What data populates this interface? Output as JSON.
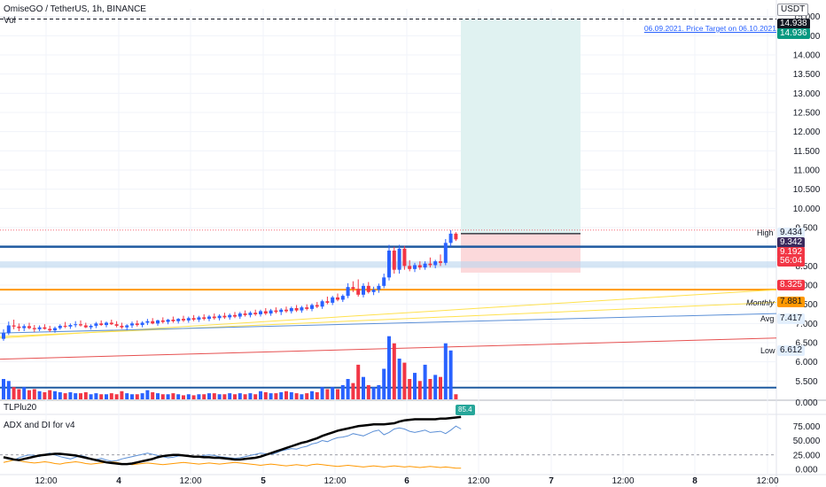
{
  "header": {
    "symbol_line": "OmiseGO / TetherUS, 1h, BINANCE",
    "vol_label": "Vol",
    "currency": "USDT"
  },
  "annotation": {
    "target_text": "06.09.2021. Price Target on 06.10.2021"
  },
  "price_tags": {
    "target_top": "14.938",
    "target_second": "14.936",
    "high_label": "High",
    "high_value": "9.434",
    "entry_value": "9.342",
    "current_value": "9.192",
    "countdown": "56:04",
    "stop_value": "8.325",
    "monthly_label": "Monthly",
    "monthly_value": "7.881",
    "avg_label": "Avg",
    "avg_value": "7.417",
    "low_label": "Low",
    "low_value": "6.612",
    "vol_value": "0.000",
    "zero_value": "0.000"
  },
  "indicators": {
    "tlp_label": "TLPlu20",
    "tlp_badge": "85.4",
    "adx_label": "ADX and DI for v4"
  },
  "colors": {
    "up": "#2962ff",
    "down": "#f23645",
    "accent_green": "#089981",
    "orange": "#ff9800",
    "target_zone": "#e0f2f1",
    "stop_zone": "#fcd9db"
  },
  "chart_data": {
    "type": "candlestick",
    "title": "",
    "price_axis": {
      "ticks": [
        "15.000",
        "14.500",
        "14.000",
        "13.500",
        "13.000",
        "12.500",
        "12.000",
        "11.500",
        "11.000",
        "10.500",
        "10.000",
        "9.500",
        "8.500",
        "8.000",
        "7.500",
        "7.000",
        "6.500",
        "6.000",
        "5.500"
      ],
      "ylim": [
        5.0,
        15.2
      ]
    },
    "time_axis": {
      "ticks": [
        "12:00",
        "4",
        "12:00",
        "5",
        "12:00",
        "6",
        "12:00",
        "7",
        "12:00",
        "8",
        "12:00"
      ]
    },
    "lines": {
      "target_price": 14.936,
      "high": 9.434,
      "entry": 9.342,
      "current": 9.192,
      "stop": 8.325,
      "monthly": 7.881,
      "avg": 7.417,
      "low": 6.612
    },
    "candles": [
      {
        "o": 6.6,
        "h": 6.85,
        "l": 6.55,
        "c": 6.75,
        "v": 0.2
      },
      {
        "o": 6.75,
        "h": 7.05,
        "l": 6.7,
        "c": 6.95,
        "v": 0.18
      },
      {
        "o": 6.95,
        "h": 7.1,
        "l": 6.85,
        "c": 6.92,
        "v": 0.12
      },
      {
        "o": 6.92,
        "h": 7.0,
        "l": 6.8,
        "c": 6.88,
        "v": 0.1
      },
      {
        "o": 6.88,
        "h": 6.98,
        "l": 6.8,
        "c": 6.93,
        "v": 0.12
      },
      {
        "o": 6.93,
        "h": 7.02,
        "l": 6.85,
        "c": 6.88,
        "v": 0.09
      },
      {
        "o": 6.88,
        "h": 6.96,
        "l": 6.78,
        "c": 6.85,
        "v": 0.1
      },
      {
        "o": 6.85,
        "h": 6.95,
        "l": 6.8,
        "c": 6.9,
        "v": 0.08
      },
      {
        "o": 6.9,
        "h": 6.98,
        "l": 6.84,
        "c": 6.86,
        "v": 0.07
      },
      {
        "o": 6.86,
        "h": 6.94,
        "l": 6.78,
        "c": 6.82,
        "v": 0.09
      },
      {
        "o": 6.82,
        "h": 6.92,
        "l": 6.76,
        "c": 6.88,
        "v": 0.08
      },
      {
        "o": 6.88,
        "h": 6.98,
        "l": 6.84,
        "c": 6.94,
        "v": 0.07
      },
      {
        "o": 6.94,
        "h": 7.04,
        "l": 6.88,
        "c": 6.92,
        "v": 0.06
      },
      {
        "o": 6.92,
        "h": 7.0,
        "l": 6.86,
        "c": 6.96,
        "v": 0.07
      },
      {
        "o": 6.96,
        "h": 7.06,
        "l": 6.9,
        "c": 6.98,
        "v": 0.06
      },
      {
        "o": 6.98,
        "h": 7.08,
        "l": 6.92,
        "c": 6.95,
        "v": 0.06
      },
      {
        "o": 6.95,
        "h": 7.02,
        "l": 6.88,
        "c": 6.9,
        "v": 0.07
      },
      {
        "o": 6.9,
        "h": 6.98,
        "l": 6.84,
        "c": 6.94,
        "v": 0.05
      },
      {
        "o": 6.94,
        "h": 7.04,
        "l": 6.88,
        "c": 7.0,
        "v": 0.06
      },
      {
        "o": 7.0,
        "h": 7.08,
        "l": 6.94,
        "c": 6.96,
        "v": 0.05
      },
      {
        "o": 6.96,
        "h": 7.05,
        "l": 6.9,
        "c": 7.02,
        "v": 0.05
      },
      {
        "o": 7.02,
        "h": 7.1,
        "l": 6.96,
        "c": 6.98,
        "v": 0.06
      },
      {
        "o": 6.98,
        "h": 7.06,
        "l": 6.9,
        "c": 6.94,
        "v": 0.05
      },
      {
        "o": 6.94,
        "h": 7.02,
        "l": 6.86,
        "c": 6.9,
        "v": 0.08
      },
      {
        "o": 6.9,
        "h": 6.98,
        "l": 6.82,
        "c": 6.95,
        "v": 0.06
      },
      {
        "o": 6.95,
        "h": 7.05,
        "l": 6.88,
        "c": 7.0,
        "v": 0.05
      },
      {
        "o": 7.0,
        "h": 7.08,
        "l": 6.92,
        "c": 6.96,
        "v": 0.05
      },
      {
        "o": 6.96,
        "h": 7.06,
        "l": 6.9,
        "c": 7.02,
        "v": 0.06
      },
      {
        "o": 7.02,
        "h": 7.12,
        "l": 6.96,
        "c": 7.06,
        "v": 0.09
      },
      {
        "o": 7.06,
        "h": 7.14,
        "l": 6.98,
        "c": 7.0,
        "v": 0.07
      },
      {
        "o": 7.0,
        "h": 7.1,
        "l": 6.94,
        "c": 7.08,
        "v": 0.06
      },
      {
        "o": 7.08,
        "h": 7.16,
        "l": 7.0,
        "c": 7.04,
        "v": 0.05
      },
      {
        "o": 7.04,
        "h": 7.12,
        "l": 6.98,
        "c": 7.1,
        "v": 0.05
      },
      {
        "o": 7.1,
        "h": 7.18,
        "l": 7.02,
        "c": 7.06,
        "v": 0.06
      },
      {
        "o": 7.06,
        "h": 7.14,
        "l": 7.0,
        "c": 7.12,
        "v": 0.05
      },
      {
        "o": 7.12,
        "h": 7.2,
        "l": 7.04,
        "c": 7.08,
        "v": 0.04
      },
      {
        "o": 7.08,
        "h": 7.18,
        "l": 7.02,
        "c": 7.14,
        "v": 0.05
      },
      {
        "o": 7.14,
        "h": 7.22,
        "l": 7.06,
        "c": 7.1,
        "v": 0.04
      },
      {
        "o": 7.1,
        "h": 7.2,
        "l": 7.04,
        "c": 7.16,
        "v": 0.05
      },
      {
        "o": 7.16,
        "h": 7.24,
        "l": 7.08,
        "c": 7.12,
        "v": 0.05
      },
      {
        "o": 7.12,
        "h": 7.22,
        "l": 7.06,
        "c": 7.18,
        "v": 0.06
      },
      {
        "o": 7.18,
        "h": 7.26,
        "l": 7.1,
        "c": 7.14,
        "v": 0.06
      },
      {
        "o": 7.14,
        "h": 7.24,
        "l": 7.08,
        "c": 7.2,
        "v": 0.05
      },
      {
        "o": 7.2,
        "h": 7.28,
        "l": 7.12,
        "c": 7.16,
        "v": 0.05
      },
      {
        "o": 7.16,
        "h": 7.26,
        "l": 7.1,
        "c": 7.22,
        "v": 0.06
      },
      {
        "o": 7.22,
        "h": 7.3,
        "l": 7.14,
        "c": 7.18,
        "v": 0.05
      },
      {
        "o": 7.18,
        "h": 7.3,
        "l": 7.12,
        "c": 7.26,
        "v": 0.06
      },
      {
        "o": 7.26,
        "h": 7.34,
        "l": 7.18,
        "c": 7.22,
        "v": 0.05
      },
      {
        "o": 7.22,
        "h": 7.32,
        "l": 7.16,
        "c": 7.28,
        "v": 0.06
      },
      {
        "o": 7.28,
        "h": 7.36,
        "l": 7.2,
        "c": 7.24,
        "v": 0.05
      },
      {
        "o": 7.24,
        "h": 7.36,
        "l": 7.18,
        "c": 7.32,
        "v": 0.08
      },
      {
        "o": 7.32,
        "h": 7.4,
        "l": 7.22,
        "c": 7.26,
        "v": 0.07
      },
      {
        "o": 7.26,
        "h": 7.38,
        "l": 7.2,
        "c": 7.34,
        "v": 0.06
      },
      {
        "o": 7.34,
        "h": 7.42,
        "l": 7.26,
        "c": 7.3,
        "v": 0.06
      },
      {
        "o": 7.3,
        "h": 7.4,
        "l": 7.22,
        "c": 7.36,
        "v": 0.07
      },
      {
        "o": 7.36,
        "h": 7.44,
        "l": 7.28,
        "c": 7.32,
        "v": 0.08
      },
      {
        "o": 7.32,
        "h": 7.44,
        "l": 7.26,
        "c": 7.4,
        "v": 0.07
      },
      {
        "o": 7.4,
        "h": 7.48,
        "l": 7.3,
        "c": 7.34,
        "v": 0.06
      },
      {
        "o": 7.34,
        "h": 7.46,
        "l": 7.28,
        "c": 7.42,
        "v": 0.05
      },
      {
        "o": 7.42,
        "h": 7.5,
        "l": 7.34,
        "c": 7.38,
        "v": 0.06
      },
      {
        "o": 7.38,
        "h": 7.52,
        "l": 7.32,
        "c": 7.48,
        "v": 0.08
      },
      {
        "o": 7.48,
        "h": 7.56,
        "l": 7.4,
        "c": 7.44,
        "v": 0.07
      },
      {
        "o": 7.44,
        "h": 7.62,
        "l": 7.38,
        "c": 7.58,
        "v": 0.12
      },
      {
        "o": 7.58,
        "h": 7.7,
        "l": 7.5,
        "c": 7.54,
        "v": 0.1
      },
      {
        "o": 7.54,
        "h": 7.72,
        "l": 7.48,
        "c": 7.68,
        "v": 0.12
      },
      {
        "o": 7.68,
        "h": 7.78,
        "l": 7.58,
        "c": 7.62,
        "v": 0.1
      },
      {
        "o": 7.62,
        "h": 7.76,
        "l": 7.56,
        "c": 7.72,
        "v": 0.14
      },
      {
        "o": 7.72,
        "h": 8.05,
        "l": 7.66,
        "c": 7.95,
        "v": 0.2
      },
      {
        "o": 7.95,
        "h": 8.1,
        "l": 7.82,
        "c": 7.9,
        "v": 0.16
      },
      {
        "o": 7.9,
        "h": 8.15,
        "l": 7.7,
        "c": 7.75,
        "v": 0.34
      },
      {
        "o": 7.75,
        "h": 8.05,
        "l": 7.68,
        "c": 7.98,
        "v": 0.22
      },
      {
        "o": 7.98,
        "h": 8.08,
        "l": 7.78,
        "c": 7.82,
        "v": 0.14
      },
      {
        "o": 7.82,
        "h": 7.96,
        "l": 7.74,
        "c": 7.88,
        "v": 0.12
      },
      {
        "o": 7.88,
        "h": 8.04,
        "l": 7.8,
        "c": 7.98,
        "v": 0.14
      },
      {
        "o": 7.98,
        "h": 8.3,
        "l": 7.92,
        "c": 8.2,
        "v": 0.3
      },
      {
        "o": 8.2,
        "h": 9.05,
        "l": 8.12,
        "c": 8.9,
        "v": 0.62
      },
      {
        "o": 8.9,
        "h": 9.0,
        "l": 8.3,
        "c": 8.4,
        "v": 0.55
      },
      {
        "o": 8.4,
        "h": 9.05,
        "l": 8.3,
        "c": 8.95,
        "v": 0.4
      },
      {
        "o": 8.95,
        "h": 9.02,
        "l": 8.4,
        "c": 8.5,
        "v": 0.36
      },
      {
        "o": 8.5,
        "h": 8.65,
        "l": 8.36,
        "c": 8.42,
        "v": 0.2
      },
      {
        "o": 8.42,
        "h": 8.58,
        "l": 8.34,
        "c": 8.52,
        "v": 0.26
      },
      {
        "o": 8.52,
        "h": 8.62,
        "l": 8.4,
        "c": 8.46,
        "v": 0.18
      },
      {
        "o": 8.46,
        "h": 8.62,
        "l": 8.4,
        "c": 8.56,
        "v": 0.34
      },
      {
        "o": 8.56,
        "h": 8.72,
        "l": 8.46,
        "c": 8.52,
        "v": 0.2
      },
      {
        "o": 8.52,
        "h": 8.66,
        "l": 8.44,
        "c": 8.62,
        "v": 0.24
      },
      {
        "o": 8.62,
        "h": 8.8,
        "l": 8.5,
        "c": 8.58,
        "v": 0.22
      },
      {
        "o": 8.58,
        "h": 9.2,
        "l": 8.52,
        "c": 9.1,
        "v": 0.55
      },
      {
        "o": 9.1,
        "h": 9.434,
        "l": 9.0,
        "c": 9.342,
        "v": 0.48
      },
      {
        "o": 9.342,
        "h": 9.38,
        "l": 9.15,
        "c": 9.192,
        "v": 0.05
      }
    ],
    "volume_axis": {
      "ticks": [
        "0.000"
      ]
    },
    "adx": {
      "ticks": [
        "75.000",
        "50.000",
        "25.000",
        "0.000"
      ],
      "ylim": [
        0,
        100
      ],
      "adx_series": [
        21,
        19,
        17,
        16,
        18,
        20,
        22,
        24,
        25,
        26,
        27,
        27,
        26,
        25,
        24,
        22,
        20,
        18,
        16,
        14,
        12,
        11,
        10,
        9,
        9,
        10,
        12,
        14,
        16,
        18,
        21,
        23,
        24,
        25,
        25,
        24,
        23,
        22,
        22,
        21,
        21,
        20,
        20,
        19,
        18,
        17,
        17,
        18,
        19,
        20,
        22,
        25,
        28,
        31,
        34,
        37,
        40,
        43,
        46,
        48,
        51,
        54,
        58,
        61,
        64,
        67,
        69,
        71,
        73,
        75,
        76,
        77,
        78,
        78,
        78,
        79,
        80,
        83,
        85,
        86,
        87,
        87,
        87,
        87,
        87,
        88,
        88,
        89,
        90,
        91
      ],
      "di_plus": [
        20,
        18,
        16,
        20,
        23,
        25,
        24,
        22,
        26,
        28,
        25,
        22,
        20,
        18,
        21,
        24,
        22,
        18,
        17,
        19,
        16,
        14,
        15,
        18,
        20,
        22,
        24,
        26,
        28,
        26,
        24,
        22,
        20,
        21,
        23,
        24,
        23,
        21,
        22,
        24,
        25,
        24,
        22,
        21,
        20,
        19,
        20,
        22,
        24,
        26,
        28,
        27,
        26,
        28,
        32,
        34,
        36,
        35,
        38,
        40,
        44,
        46,
        50,
        48,
        52,
        55,
        56,
        58,
        62,
        60,
        58,
        62,
        66,
        68,
        60,
        64,
        70,
        72,
        70,
        66,
        64,
        66,
        68,
        64,
        65,
        66,
        62,
        68,
        75,
        70
      ],
      "di_minus": [
        12,
        14,
        16,
        15,
        13,
        12,
        11,
        12,
        13,
        12,
        10,
        9,
        11,
        12,
        13,
        12,
        10,
        9,
        10,
        11,
        12,
        13,
        12,
        10,
        9,
        8,
        9,
        10,
        11,
        10,
        9,
        8,
        9,
        10,
        11,
        12,
        11,
        10,
        9,
        10,
        11,
        10,
        9,
        10,
        11,
        12,
        11,
        10,
        9,
        8,
        7,
        8,
        9,
        8,
        7,
        6,
        7,
        8,
        7,
        6,
        8,
        9,
        8,
        7,
        6,
        5,
        6,
        7,
        6,
        5,
        4,
        5,
        6,
        5,
        4,
        5,
        6,
        5,
        4,
        5,
        4,
        3,
        4,
        5,
        4,
        3,
        4,
        3,
        2,
        2
      ]
    }
  }
}
